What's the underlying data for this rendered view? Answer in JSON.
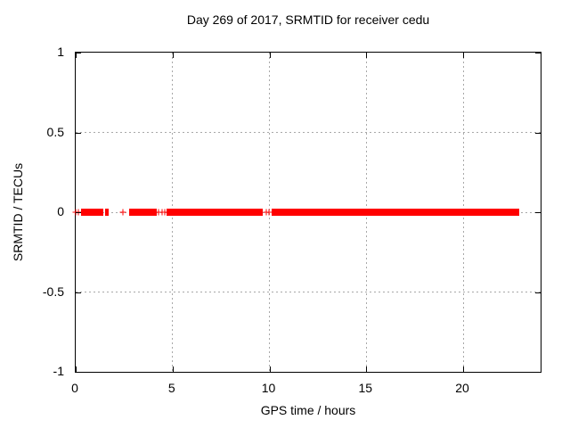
{
  "chart_data": {
    "type": "scatter",
    "title": "Day 269 of 2017, SRMTID for receiver cedu",
    "xlabel": "GPS time / hours",
    "ylabel": "SRMTID / TECUs",
    "xlim": [
      0,
      24
    ],
    "ylim": [
      -1,
      1
    ],
    "xticks": [
      0,
      5,
      10,
      15,
      20
    ],
    "xtick_labels": [
      "0",
      "5",
      "10",
      "15",
      "20"
    ],
    "yticks": [
      1,
      0.5,
      0,
      -0.5,
      -1
    ],
    "ytick_labels": [
      "1",
      "0.5",
      "0",
      "-0.5",
      "-1"
    ],
    "grid": true,
    "grid_color": "#a8a8a8",
    "axis_color": "#000000",
    "background_color": "#ffffff",
    "legend": "none",
    "series": [
      {
        "name": "SRMTID",
        "marker": "plus",
        "color": "#ff0000",
        "y_value": 0,
        "dense_segments_hours": [
          [
            0.28,
            1.43
          ],
          [
            1.51,
            1.69
          ],
          [
            2.75,
            4.17
          ],
          [
            4.67,
            9.66
          ],
          [
            10.12,
            22.9
          ]
        ],
        "isolated_points_hours": [
          0.0,
          0.16,
          2.43,
          4.26,
          4.44,
          4.6,
          9.85,
          9.97
        ]
      }
    ]
  }
}
